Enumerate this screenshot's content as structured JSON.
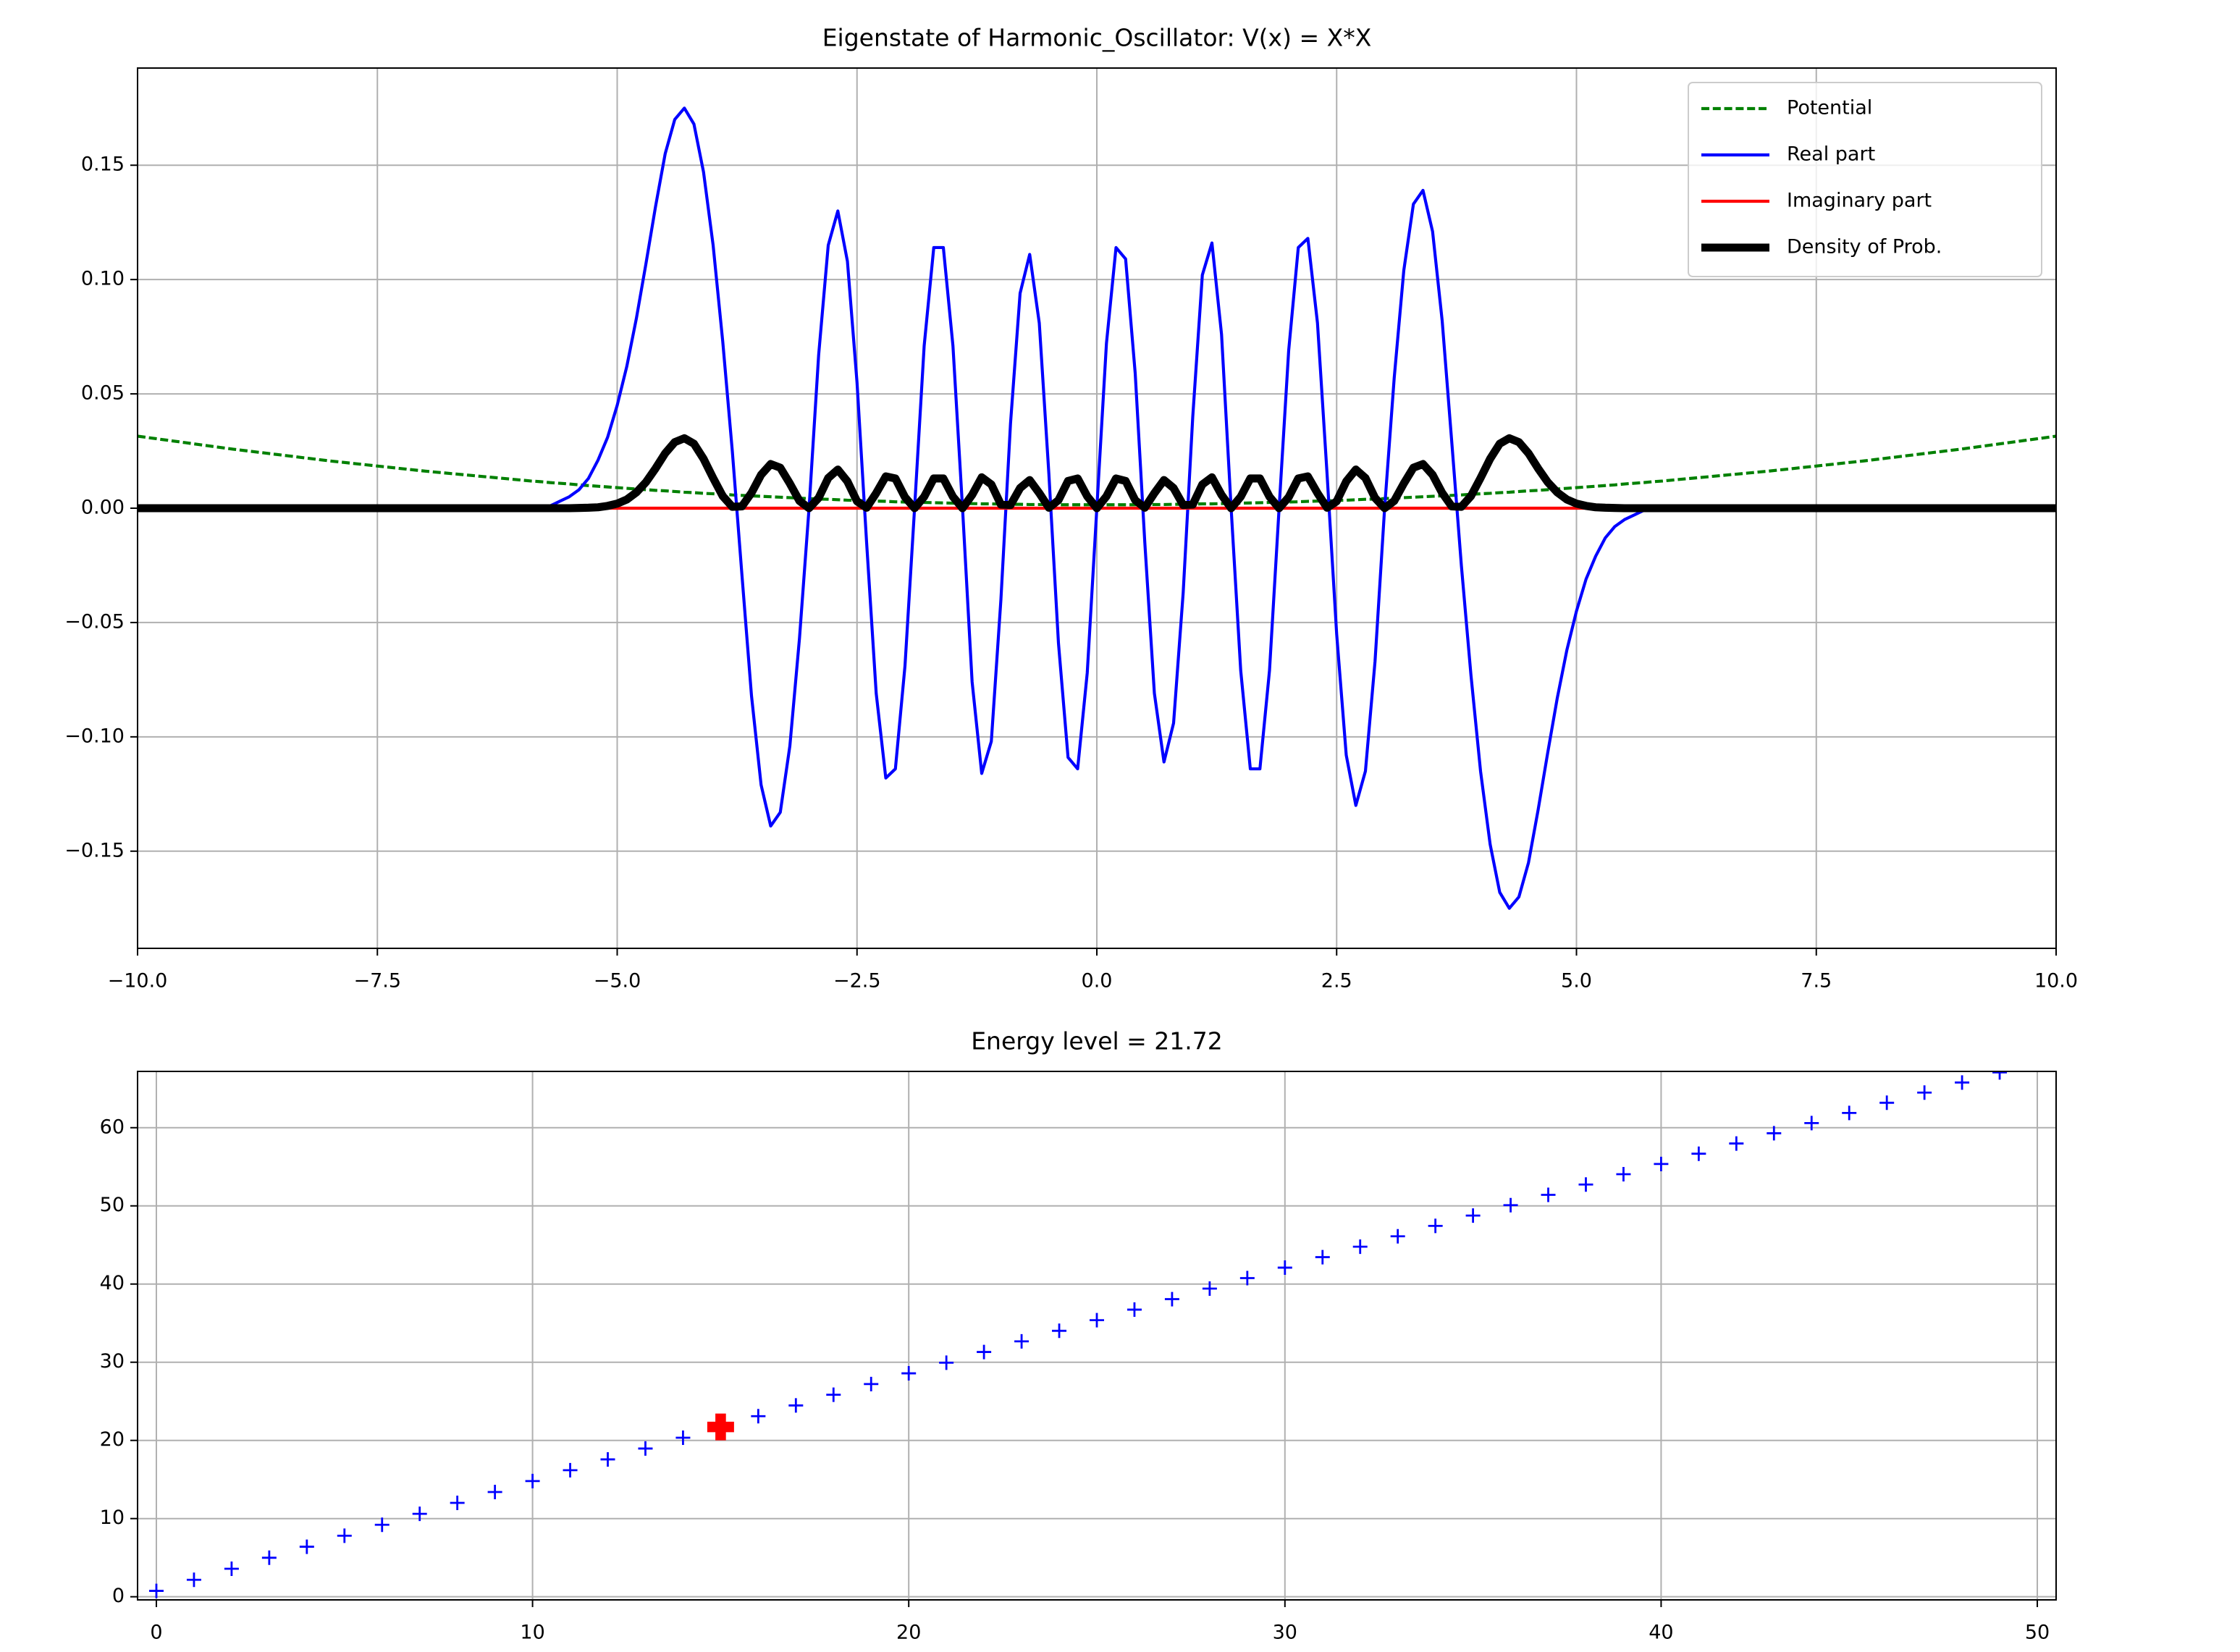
{
  "chart_data": [
    {
      "type": "line",
      "title": "Eigenstate of Harmonic_Oscillator: V(x) = X*X",
      "x": [
        -10,
        -9,
        -8,
        -7,
        -6,
        -5.9,
        -5.8,
        -5.7,
        -5.6,
        -5.5,
        -5.4,
        -5.3,
        -5.2,
        -5.1,
        -5,
        -4.9,
        -4.8,
        -4.7,
        -4.6,
        -4.5,
        -4.4,
        -4.3,
        -4.2,
        -4.1,
        -4,
        -3.9,
        -3.8,
        -3.7,
        -3.6,
        -3.5,
        -3.4,
        -3.3,
        -3.2,
        -3.1,
        -3,
        -2.9,
        -2.8,
        -2.7,
        -2.6,
        -2.5,
        -2.4,
        -2.3,
        -2.2,
        -2.1,
        -2,
        -1.9,
        -1.8,
        -1.7,
        -1.6,
        -1.5,
        -1.4,
        -1.3,
        -1.2,
        -1.1,
        -1,
        -0.9,
        -0.8,
        -0.7,
        -0.6,
        -0.5,
        -0.4,
        -0.3,
        -0.2,
        -0.1,
        0,
        0.1,
        0.2,
        0.3,
        0.4,
        0.5,
        0.6,
        0.7,
        0.8,
        0.9,
        1,
        1.1,
        1.2,
        1.3,
        1.4,
        1.5,
        1.6,
        1.7,
        1.8,
        1.9,
        2,
        2.1,
        2.2,
        2.3,
        2.4,
        2.5,
        2.6,
        2.7,
        2.8,
        2.9,
        3,
        3.1,
        3.2,
        3.3,
        3.4,
        3.5,
        3.6,
        3.7,
        3.8,
        3.9,
        4,
        4.1,
        4.2,
        4.3,
        4.4,
        4.5,
        4.6,
        4.7,
        4.8,
        4.9,
        5,
        5.1,
        5.2,
        5.3,
        5.4,
        5.5,
        5.6,
        5.7,
        5.8,
        5.9,
        6,
        7,
        8,
        9,
        10
      ],
      "series": [
        {
          "name": "Potential",
          "color": "green",
          "dash": true,
          "linewidth": 1.5,
          "values": [
            0.0315,
            0.0258,
            0.0207,
            0.0162,
            0.0123,
            0.0119,
            0.0116,
            0.0112,
            0.0109,
            0.0106,
            0.0102,
            0.0099,
            0.0096,
            0.0093,
            0.009,
            0.0087,
            0.0084,
            0.0081,
            0.0078,
            0.0076,
            0.0073,
            0.007,
            0.0068,
            0.0065,
            0.0063,
            0.0061,
            0.0058,
            0.0056,
            0.0054,
            0.0052,
            0.005,
            0.0048,
            0.0046,
            0.0044,
            0.0042,
            0.004,
            0.0039,
            0.0037,
            0.0035,
            0.0034,
            0.0032,
            0.0031,
            0.003,
            0.0028,
            0.0027,
            0.0026,
            0.0025,
            0.0024,
            0.0023,
            0.0022,
            0.0021,
            0.002,
            0.0019,
            0.0019,
            0.0018,
            0.0017,
            0.0017,
            0.0016,
            0.0016,
            0.0016,
            0.0015,
            0.0015,
            0.0015,
            0.0015,
            0.0015,
            0.0015,
            0.0015,
            0.0015,
            0.0015,
            0.0016,
            0.0016,
            0.0016,
            0.0017,
            0.0017,
            0.0018,
            0.0019,
            0.0019,
            0.002,
            0.0021,
            0.0022,
            0.0023,
            0.0024,
            0.0025,
            0.0026,
            0.0027,
            0.0028,
            0.003,
            0.0031,
            0.0032,
            0.0034,
            0.0035,
            0.0037,
            0.0039,
            0.004,
            0.0042,
            0.0044,
            0.0046,
            0.0048,
            0.005,
            0.0052,
            0.0054,
            0.0056,
            0.0058,
            0.0061,
            0.0063,
            0.0065,
            0.0068,
            0.007,
            0.0073,
            0.0076,
            0.0078,
            0.0081,
            0.0084,
            0.0087,
            0.009,
            0.0093,
            0.0096,
            0.0099,
            0.0102,
            0.0106,
            0.0109,
            0.0112,
            0.0116,
            0.0119,
            0.0123,
            0.0162,
            0.0207,
            0.0258,
            0.0315
          ]
        },
        {
          "name": "Real part",
          "color": "blue",
          "linewidth": 1.5,
          "values": [
            0,
            0,
            0,
            0,
            0,
            0,
            0.001,
            0.001,
            0.003,
            0.005,
            0.008,
            0.013,
            0.021,
            0.031,
            0.045,
            0.062,
            0.083,
            0.107,
            0.132,
            0.155,
            0.17,
            0.175,
            0.168,
            0.147,
            0.115,
            0.073,
            0.025,
            -0.029,
            -0.082,
            -0.121,
            -0.139,
            -0.133,
            -0.104,
            -0.057,
            0,
            0.067,
            0.115,
            0.13,
            0.108,
            0.055,
            -0.015,
            -0.081,
            -0.118,
            -0.114,
            -0.069,
            0,
            0.071,
            0.114,
            0.114,
            0.071,
            0,
            -0.076,
            -0.116,
            -0.102,
            -0.04,
            0.037,
            0.094,
            0.111,
            0.081,
            0.015,
            -0.059,
            -0.109,
            -0.114,
            -0.072,
            0,
            0.072,
            0.114,
            0.109,
            0.059,
            -0.015,
            -0.081,
            -0.111,
            -0.094,
            -0.037,
            0.04,
            0.102,
            0.116,
            0.076,
            0,
            -0.071,
            -0.114,
            -0.114,
            -0.071,
            0,
            0.069,
            0.114,
            0.118,
            0.081,
            0.015,
            -0.055,
            -0.108,
            -0.13,
            -0.115,
            -0.067,
            0,
            0.057,
            0.104,
            0.133,
            0.139,
            0.121,
            0.082,
            0.029,
            -0.025,
            -0.073,
            -0.115,
            -0.147,
            -0.168,
            -0.175,
            -0.17,
            -0.155,
            -0.132,
            -0.107,
            -0.083,
            -0.062,
            -0.045,
            -0.031,
            -0.021,
            -0.013,
            -0.008,
            -0.005,
            -0.003,
            -0.001,
            -0.001,
            0,
            0,
            0,
            0,
            0,
            0
          ]
        },
        {
          "name": "Imaginary part",
          "color": "red",
          "linewidth": 1.5,
          "values": [
            0,
            0,
            0,
            0,
            0,
            0,
            0,
            0,
            0,
            0,
            0,
            0,
            0,
            0,
            0,
            0,
            0,
            0,
            0,
            0,
            0,
            0,
            0,
            0,
            0,
            0,
            0,
            0,
            0,
            0,
            0,
            0,
            0,
            0,
            0,
            0,
            0,
            0,
            0,
            0,
            0,
            0,
            0,
            0,
            0,
            0,
            0,
            0,
            0,
            0,
            0,
            0,
            0,
            0,
            0,
            0,
            0,
            0,
            0,
            0,
            0,
            0,
            0,
            0,
            0,
            0,
            0,
            0,
            0,
            0,
            0,
            0,
            0,
            0,
            0,
            0,
            0,
            0,
            0,
            0,
            0,
            0,
            0,
            0,
            0,
            0,
            0,
            0,
            0,
            0,
            0,
            0,
            0,
            0,
            0,
            0,
            0,
            0,
            0,
            0,
            0,
            0,
            0,
            0,
            0,
            0,
            0,
            0,
            0,
            0,
            0,
            0,
            0,
            0,
            0,
            0,
            0,
            0,
            0,
            0,
            0,
            0,
            0,
            0,
            0,
            0,
            0,
            0,
            0
          ]
        },
        {
          "name": "Density of Prob.",
          "color": "black",
          "linewidth": 4,
          "values": [
            0,
            0,
            0,
            0,
            0,
            0,
            0,
            0,
            0,
            0,
            0.0001,
            0.0002,
            0.0004,
            0.001,
            0.002,
            0.0038,
            0.0069,
            0.0114,
            0.0174,
            0.024,
            0.0289,
            0.0306,
            0.0282,
            0.0216,
            0.0132,
            0.0053,
            0.0006,
            0.0008,
            0.0067,
            0.0146,
            0.0193,
            0.0177,
            0.0108,
            0.0032,
            0,
            0.0045,
            0.0132,
            0.0169,
            0.0117,
            0.003,
            0.0002,
            0.0066,
            0.0139,
            0.013,
            0.0048,
            0,
            0.005,
            0.013,
            0.013,
            0.005,
            0,
            0.0058,
            0.0135,
            0.0104,
            0.0016,
            0.0014,
            0.0088,
            0.0123,
            0.0066,
            0.0002,
            0.0035,
            0.0119,
            0.013,
            0.0052,
            0,
            0.0052,
            0.013,
            0.0119,
            0.0035,
            0.0002,
            0.0066,
            0.0123,
            0.0088,
            0.0014,
            0.0016,
            0.0104,
            0.0135,
            0.0058,
            0,
            0.005,
            0.013,
            0.013,
            0.005,
            0,
            0.0048,
            0.013,
            0.0139,
            0.0066,
            0.0002,
            0.003,
            0.0117,
            0.0169,
            0.0132,
            0.0045,
            0,
            0.0032,
            0.0108,
            0.0177,
            0.0193,
            0.0146,
            0.0067,
            0.0008,
            0.0006,
            0.0053,
            0.0132,
            0.0216,
            0.0282,
            0.0306,
            0.0289,
            0.024,
            0.0174,
            0.0114,
            0.0069,
            0.0038,
            0.002,
            0.001,
            0.0004,
            0.0002,
            0.0001,
            0,
            0,
            0,
            0,
            0,
            0,
            0,
            0,
            0,
            0
          ]
        }
      ],
      "xlim": [
        -10,
        10
      ],
      "ylim": [
        -0.1925,
        0.1925
      ],
      "xticks": [
        {
          "value": -10,
          "label": "−10.0"
        },
        {
          "value": -7.5,
          "label": "−7.5"
        },
        {
          "value": -5,
          "label": "−5.0"
        },
        {
          "value": -2.5,
          "label": "−2.5"
        },
        {
          "value": 0,
          "label": "0.0"
        },
        {
          "value": 2.5,
          "label": "2.5"
        },
        {
          "value": 5,
          "label": "5.0"
        },
        {
          "value": 7.5,
          "label": "7.5"
        },
        {
          "value": 10,
          "label": "10.0"
        }
      ],
      "yticks": [
        {
          "value": -0.15,
          "label": "−0.15"
        },
        {
          "value": -0.1,
          "label": "−0.10"
        },
        {
          "value": -0.05,
          "label": "−0.05"
        },
        {
          "value": 0,
          "label": "0.00"
        },
        {
          "value": 0.05,
          "label": "0.05"
        },
        {
          "value": 0.1,
          "label": "0.10"
        },
        {
          "value": 0.15,
          "label": "0.15"
        }
      ],
      "grid": true,
      "legend": "upper right"
    },
    {
      "type": "scatter",
      "title": "Energy level = 21.72",
      "x": [
        0,
        1,
        2,
        3,
        4,
        5,
        6,
        7,
        8,
        9,
        10,
        11,
        12,
        13,
        14,
        15,
        16,
        17,
        18,
        19,
        20,
        21,
        22,
        23,
        24,
        25,
        26,
        27,
        28,
        29,
        30,
        31,
        32,
        33,
        34,
        35,
        36,
        37,
        38,
        39,
        40,
        41,
        42,
        43,
        44,
        45,
        46,
        47,
        48,
        49
      ],
      "values": [
        0.75,
        2.17,
        3.58,
        4.99,
        6.4,
        7.81,
        9.21,
        10.61,
        12.01,
        13.4,
        14.8,
        16.19,
        17.57,
        18.96,
        20.34,
        21.72,
        23.1,
        24.47,
        25.84,
        27.21,
        28.58,
        29.94,
        31.31,
        32.67,
        34.02,
        35.38,
        36.73,
        38.07,
        39.42,
        40.76,
        42.1,
        43.44,
        44.78,
        46.11,
        47.44,
        48.76,
        50.09,
        51.41,
        52.73,
        54.05,
        55.36,
        56.67,
        57.98,
        59.29,
        60.59,
        61.89,
        63.19,
        64.49,
        65.78,
        67.07
      ],
      "color": "blue",
      "marker": "+",
      "highlight": {
        "x": 15,
        "y": 21.72,
        "color": "red",
        "marker": "P"
      },
      "xlim": [
        -0.5,
        50.5
      ],
      "ylim": [
        -0.4,
        67.2
      ],
      "xticks": [
        0,
        10,
        20,
        30,
        40,
        50
      ],
      "yticks": [
        0,
        10,
        20,
        30,
        40,
        50,
        60
      ],
      "grid": true
    }
  ]
}
